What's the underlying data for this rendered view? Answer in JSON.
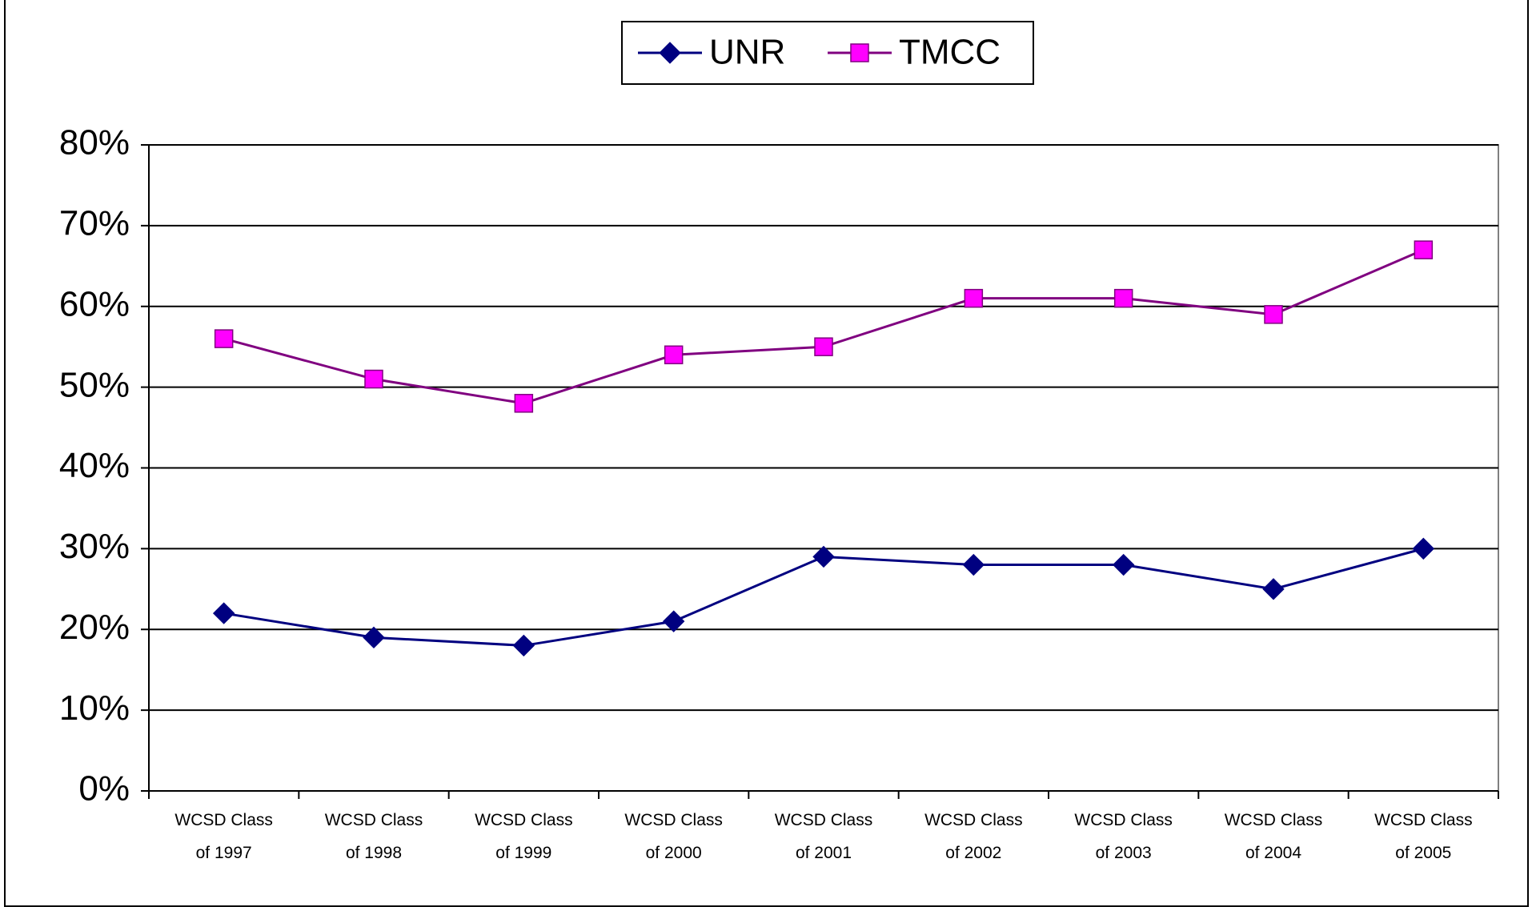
{
  "chart_data": {
    "type": "line",
    "categories": [
      "WCSD Class of 1997",
      "WCSD Class of 1998",
      "WCSD Class of 1999",
      "WCSD Class of 2000",
      "WCSD Class of 2001",
      "WCSD Class of 2002",
      "WCSD Class of 2003",
      "WCSD Class of 2004",
      "WCSD Class of 2005"
    ],
    "series": [
      {
        "name": "UNR",
        "color": "#000080",
        "marker": "diamond",
        "marker_fill": "#000080",
        "values": [
          22,
          19,
          18,
          21,
          29,
          28,
          28,
          25,
          30
        ]
      },
      {
        "name": "TMCC",
        "color": "#800080",
        "marker": "square",
        "marker_fill": "#ff00ff",
        "values": [
          56,
          51,
          48,
          54,
          55,
          61,
          61,
          59,
          67
        ]
      }
    ],
    "ylim": [
      0,
      80
    ],
    "yticks": [
      {
        "value": 0,
        "label": "0%"
      },
      {
        "value": 10,
        "label": "10%"
      },
      {
        "value": 20,
        "label": "20%"
      },
      {
        "value": 30,
        "label": "30%"
      },
      {
        "value": 40,
        "label": "40%"
      },
      {
        "value": 50,
        "label": "50%"
      },
      {
        "value": 60,
        "label": "60%"
      },
      {
        "value": 70,
        "label": "70%"
      },
      {
        "value": 80,
        "label": "80%"
      }
    ],
    "grid": true,
    "legend": "top"
  }
}
